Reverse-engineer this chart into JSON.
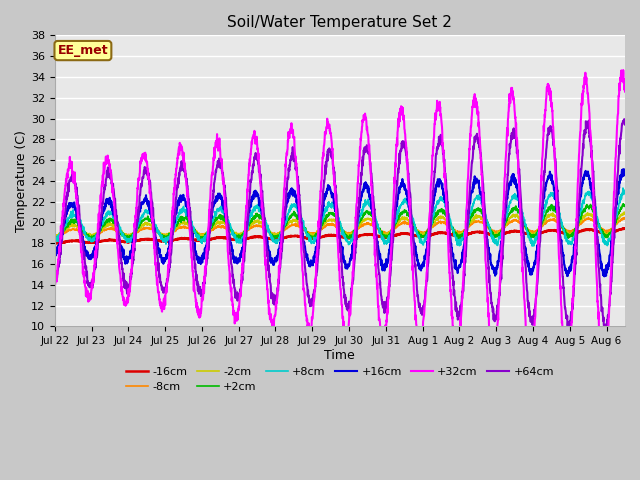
{
  "title": "Soil/Water Temperature Set 2",
  "xlabel": "Time",
  "ylabel": "Temperature (C)",
  "ylim": [
    10,
    38
  ],
  "yticks": [
    10,
    12,
    14,
    16,
    18,
    20,
    22,
    24,
    26,
    28,
    30,
    32,
    34,
    36,
    38
  ],
  "fig_bg": "#c8c8c8",
  "plot_bg": "#e8e8e8",
  "annotation_text": "EE_met",
  "annotation_bg": "#ffff99",
  "annotation_border": "#8b6914",
  "annotation_text_color": "#990000",
  "series": {
    "-16cm": {
      "color": "#dd0000",
      "lw": 1.8
    },
    "-8cm": {
      "color": "#ff8800",
      "lw": 1.2
    },
    "-2cm": {
      "color": "#cccc00",
      "lw": 1.2
    },
    "+2cm": {
      "color": "#00bb00",
      "lw": 1.2
    },
    "+8cm": {
      "color": "#00cccc",
      "lw": 1.2
    },
    "+16cm": {
      "color": "#0000dd",
      "lw": 1.5
    },
    "+32cm": {
      "color": "#ff00ff",
      "lw": 1.5
    },
    "+64cm": {
      "color": "#8800cc",
      "lw": 1.5
    }
  },
  "n_days": 15.5,
  "samples_per_day": 144,
  "xtick_labels": [
    "Jul 22",
    "Jul 23",
    "Jul 24",
    "Jul 25",
    "Jul 26",
    "Jul 27",
    "Jul 28",
    "Jul 29",
    "Jul 30",
    "Jul 31",
    "Aug 1",
    "Aug 2",
    "Aug 3",
    "Aug 4",
    "Aug 5",
    "Aug 6"
  ],
  "legend_order": [
    "-16cm",
    "-8cm",
    "-2cm",
    "+2cm",
    "+8cm",
    "+16cm",
    "+32cm",
    "+64cm"
  ]
}
